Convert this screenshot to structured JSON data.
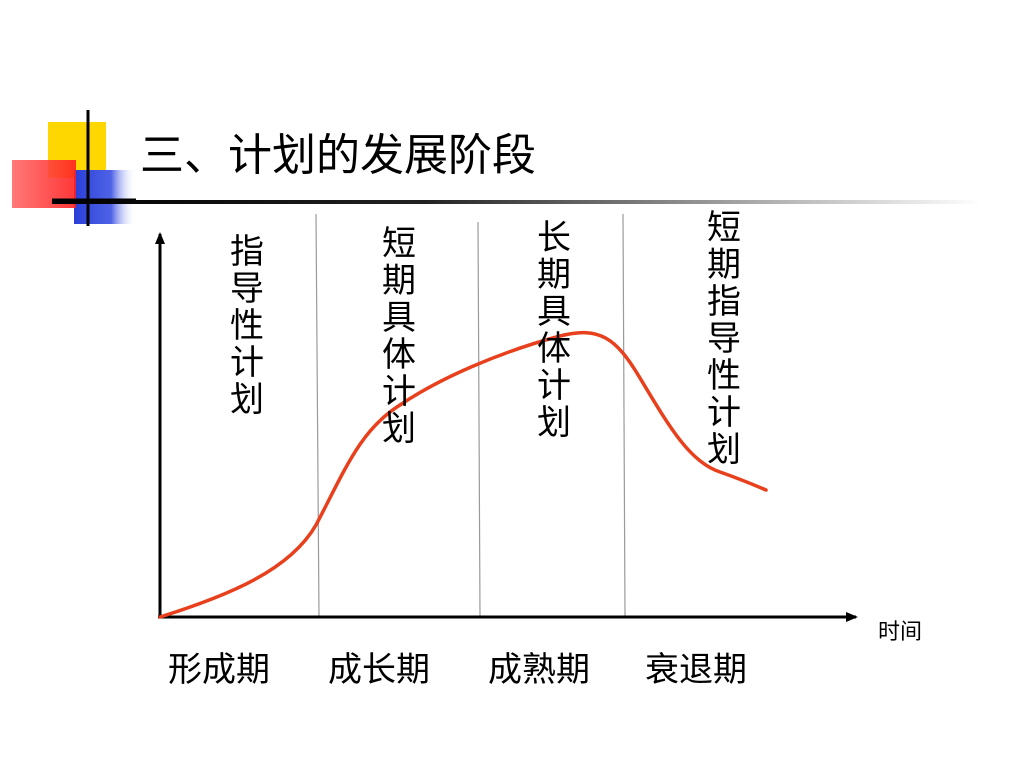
{
  "slide": {
    "title": "三、计划的发展阶段"
  },
  "diagram": {
    "x_axis_label": "时间",
    "stages": [
      "形成期",
      "成长期",
      "成熟期",
      "衰退期"
    ],
    "plan_types": [
      "指导性计划",
      "短期具体计划",
      "长期具体计划",
      "短期指导性计划"
    ],
    "curve_color": "#e8401c",
    "accent_colors": {
      "yellow": "#ffd700",
      "red": "#ff4040",
      "blue": "#2a3fd8"
    }
  }
}
